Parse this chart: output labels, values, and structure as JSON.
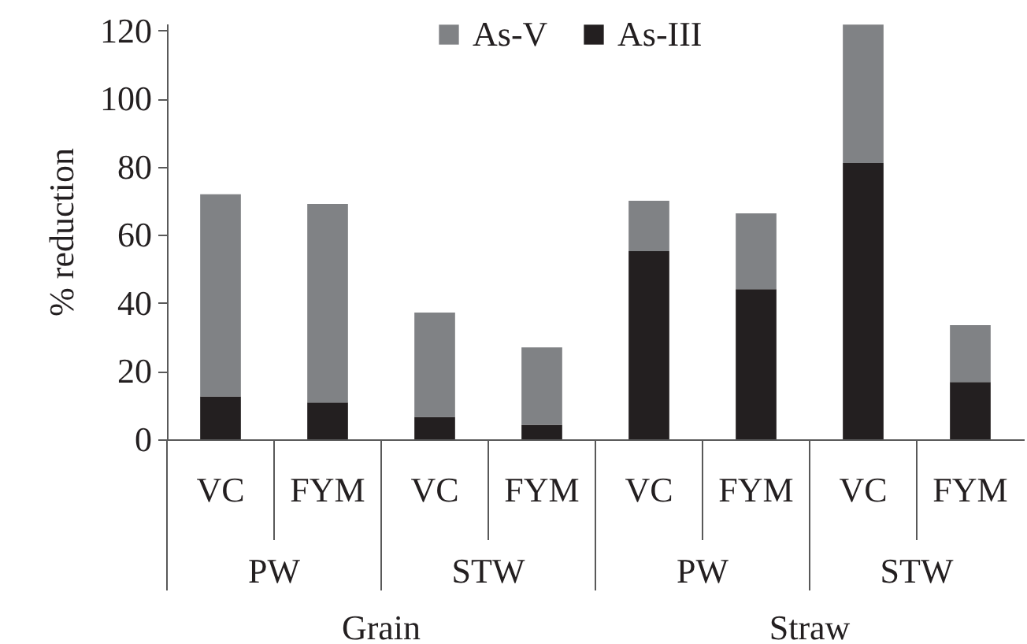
{
  "chart_data": {
    "type": "bar",
    "stacked": true,
    "ylabel": "% reduction",
    "categories": [
      "VC",
      "FYM",
      "VC",
      "FYM",
      "VC",
      "FYM",
      "VC",
      "FYM"
    ],
    "series": [
      {
        "name": "As-III",
        "color": "#231f20",
        "values": [
          12.6,
          10.8,
          6.6,
          4.3,
          55.2,
          44.1,
          81.1,
          16.8
        ]
      },
      {
        "name": "As-V",
        "color": "#808285",
        "values": [
          59.3,
          58.3,
          30.6,
          22.7,
          14.8,
          22.2,
          40.6,
          16.7
        ]
      }
    ],
    "ylim": [
      0,
      122
    ],
    "yticks": [
      0,
      20,
      40,
      60,
      80,
      100,
      120
    ],
    "legend": "top",
    "annotations": [
      "PW",
      "STW",
      "PW",
      "STW",
      "Grain",
      "Straw"
    ]
  }
}
